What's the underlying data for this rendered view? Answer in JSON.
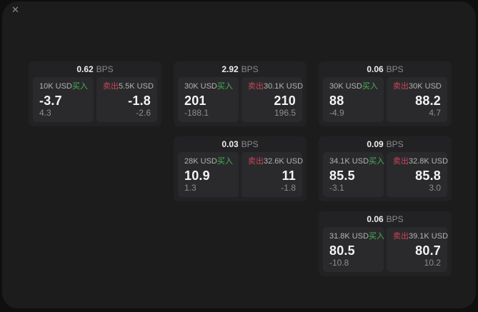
{
  "window": {
    "close_icon": "✕"
  },
  "unit_label": "BPS",
  "labels": {
    "buy": "买入",
    "sell": "卖出"
  },
  "colors": {
    "buy": "#45b358",
    "sell": "#c9455a",
    "panel": "#2a2a2c",
    "card": "#222224",
    "background": "#1c1c1d"
  },
  "cards": [
    {
      "bps": "0.62",
      "buy_amount": "10K USD",
      "buy_value": "-3.7",
      "buy_delta": "4.3",
      "sell_amount": "5.5K USD",
      "sell_value": "-1.8",
      "sell_delta": "-2.6"
    },
    {
      "bps": "2.92",
      "buy_amount": "30K USD",
      "buy_value": "201",
      "buy_delta": "-188.1",
      "sell_amount": "30.1K USD",
      "sell_value": "210",
      "sell_delta": "196.5"
    },
    {
      "bps": "0.06",
      "buy_amount": "30K USD",
      "buy_value": "88",
      "buy_delta": "-4.9",
      "sell_amount": "30K USD",
      "sell_value": "88.2",
      "sell_delta": "4.7"
    },
    {
      "bps": "0.03",
      "buy_amount": "28K USD",
      "buy_value": "10.9",
      "buy_delta": "1.3",
      "sell_amount": "32.6K USD",
      "sell_value": "11",
      "sell_delta": "-1.8"
    },
    {
      "bps": "0.09",
      "buy_amount": "34.1K USD",
      "buy_value": "85.5",
      "buy_delta": "-3.1",
      "sell_amount": "32.8K USD",
      "sell_value": "85.8",
      "sell_delta": "3.0"
    },
    {
      "bps": "0.06",
      "buy_amount": "31.8K USD",
      "buy_value": "80.5",
      "buy_delta": "-10.8",
      "sell_amount": "39.1K USD",
      "sell_value": "80.7",
      "sell_delta": "10.2"
    }
  ]
}
